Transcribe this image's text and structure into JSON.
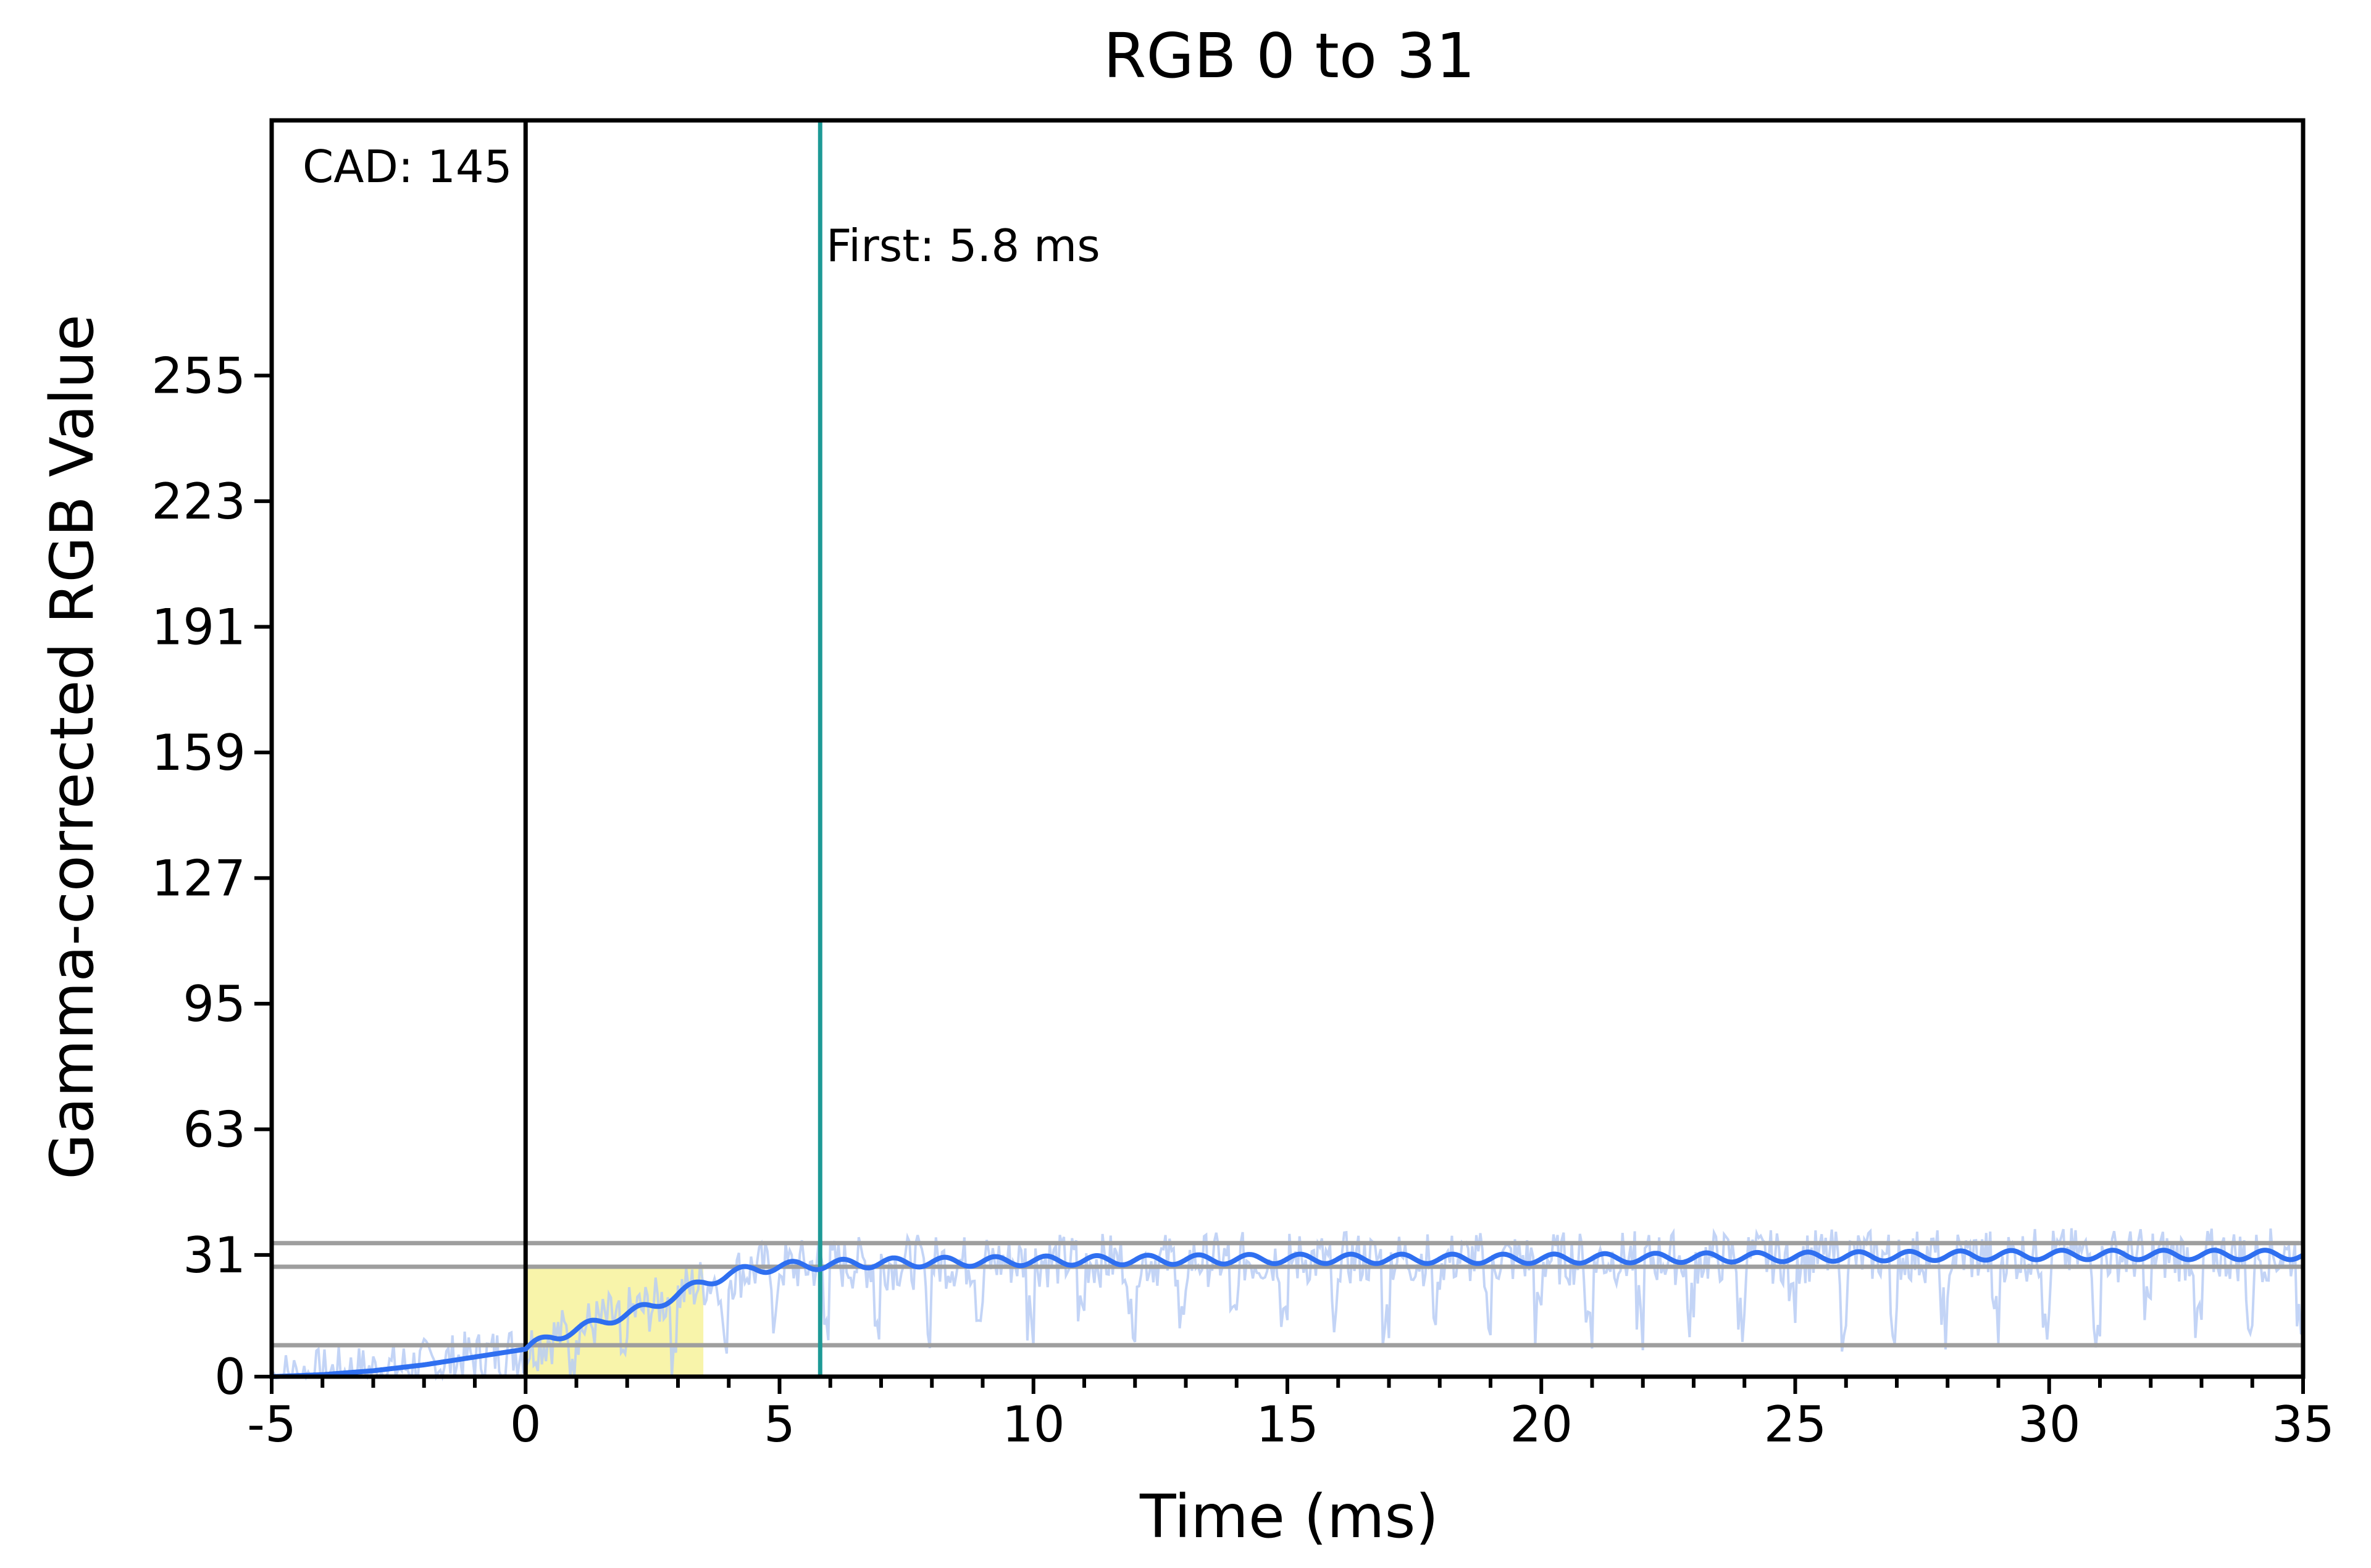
{
  "chart_data": {
    "type": "line",
    "title": "RGB 0 to 31",
    "xlabel": "Time (ms)",
    "ylabel": "Gamma-corrected RGB Value",
    "xlim": [
      -5,
      35
    ],
    "ylim": [
      0,
      320
    ],
    "xticks": [
      -5,
      0,
      5,
      10,
      15,
      20,
      25,
      30,
      35
    ],
    "yticks": [
      0,
      31,
      63,
      95,
      127,
      159,
      191,
      223,
      255
    ],
    "grid": false,
    "reference_lines": [
      {
        "value": 34
      },
      {
        "value": 28
      },
      {
        "value": 8
      }
    ],
    "annotations": {
      "cad_label": "CAD: 145",
      "cad_time": 0,
      "first_label": "First: 5.8 ms",
      "first_time": 5.8
    },
    "highlight_region": {
      "x_start": 0,
      "x_end": 3.5,
      "y_start": 0,
      "y_end": 28,
      "color": "#f7f3a1"
    },
    "series": [
      {
        "role": "smoothed",
        "color": "#2f6ff0",
        "x": [
          -5,
          -4,
          -3,
          -2,
          -1,
          0,
          0.5,
          1,
          1.5,
          2,
          2.5,
          3,
          3.5,
          4,
          4.5,
          5,
          5.8,
          7,
          10,
          15,
          20,
          25,
          30,
          35
        ],
        "values": [
          0,
          0.5,
          1.5,
          3,
          5,
          7,
          10,
          12,
          14,
          16,
          18,
          21,
          24,
          26,
          27.5,
          28,
          28.5,
          29,
          29.5,
          30,
          30,
          30.5,
          31,
          31
        ]
      },
      {
        "role": "raw",
        "color": "#b9cdf5",
        "description_only": false
      }
    ],
    "colors": {
      "axis": "#000000",
      "reference": "#9e9e9e",
      "first_marker": "#1e9a96",
      "cad_marker": "#000000"
    }
  }
}
